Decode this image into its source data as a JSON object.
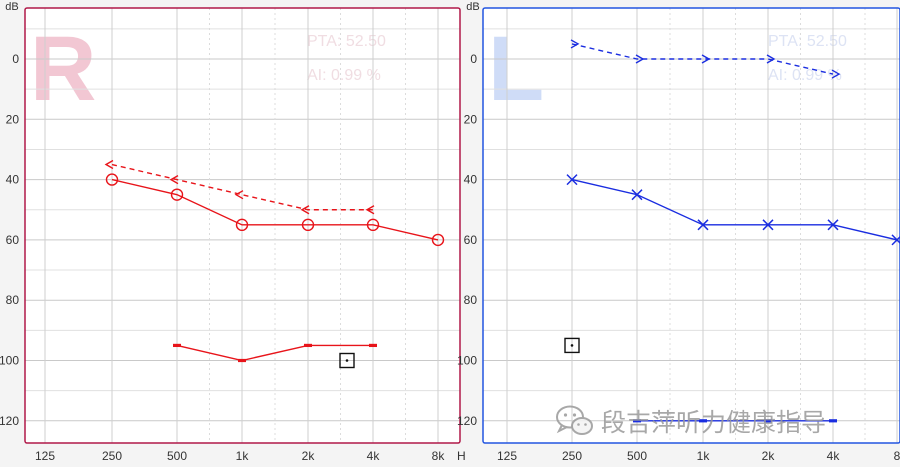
{
  "chart_data": [
    {
      "type": "line",
      "ear": "right",
      "ear_letter": "R",
      "color": "#e8141a",
      "y_unit": "dB",
      "pta": "PTA: 52.50",
      "ai": "AI: 0.99 %",
      "x_ticks": [
        "125",
        "250",
        "500",
        "1k",
        "2k",
        "4k",
        "8k"
      ],
      "x_unit_partial": "H",
      "y_ticks": [
        "0",
        "20",
        "40",
        "60",
        "80",
        "100",
        "120"
      ],
      "ylim": [
        -15,
        127
      ],
      "y_reversed": true,
      "series": [
        {
          "marker": "circle",
          "style": "solid",
          "x": [
            "250",
            "500",
            "1k",
            "2k",
            "4k",
            "8k"
          ],
          "y": [
            40,
            45,
            55,
            55,
            55,
            60
          ]
        },
        {
          "marker": "arrow-left",
          "style": "dashed",
          "x": [
            "250",
            "500",
            "1k",
            "2k",
            "4k"
          ],
          "y": [
            35,
            40,
            45,
            50,
            50
          ]
        },
        {
          "marker": "bracket",
          "style": "solid",
          "x": [
            "500",
            "1k",
            "2k",
            "4k"
          ],
          "y": [
            95,
            100,
            95,
            95
          ]
        }
      ],
      "boxed_symbol": {
        "x_ratio_from_2k": 0.6,
        "y": 100
      }
    },
    {
      "type": "line",
      "ear": "left",
      "ear_letter": "L",
      "color": "#1a2de0",
      "y_unit": "dB",
      "pta": "PTA: 52.50",
      "ai": "AI: 0.99 %",
      "x_ticks": [
        "125",
        "250",
        "500",
        "1k",
        "2k",
        "4k",
        "8k"
      ],
      "x_tick_visible_8k": "8",
      "y_ticks": [
        "0",
        "20",
        "40",
        "60",
        "80",
        "100",
        "120"
      ],
      "ylim": [
        -15,
        127
      ],
      "y_reversed": true,
      "series": [
        {
          "marker": "x",
          "style": "solid",
          "x": [
            "250",
            "500",
            "1k",
            "2k",
            "4k",
            "8k"
          ],
          "y": [
            40,
            45,
            55,
            55,
            55,
            60
          ]
        },
        {
          "marker": "arrow-right",
          "style": "dashed",
          "x": [
            "250",
            "500",
            "1k",
            "2k",
            "4k"
          ],
          "y": [
            -5,
            0,
            0,
            0,
            5
          ]
        },
        {
          "marker": "bracket",
          "style": "solid",
          "x": [
            "500",
            "1k",
            "2k",
            "4k"
          ],
          "y": [
            120,
            120,
            120,
            120
          ]
        }
      ],
      "boxed_symbol": {
        "x": "250",
        "y": 95
      }
    }
  ],
  "watermark": {
    "text": "段吉萍听力健康指导",
    "icon": "wechat-icon"
  }
}
